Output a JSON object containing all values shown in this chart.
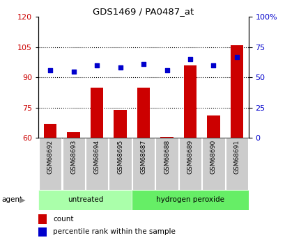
{
  "title": "GDS1469 / PA0487_at",
  "samples": [
    "GSM68692",
    "GSM68693",
    "GSM68694",
    "GSM68695",
    "GSM68687",
    "GSM68688",
    "GSM68689",
    "GSM68690",
    "GSM68691"
  ],
  "counts": [
    67,
    63,
    85,
    74,
    85,
    60.5,
    96,
    71,
    106
  ],
  "percentile_ranks": [
    56,
    55,
    60,
    58,
    61,
    56,
    65,
    60,
    67
  ],
  "groups": [
    "untreated",
    "untreated",
    "untreated",
    "untreated",
    "hydrogen peroxide",
    "hydrogen peroxide",
    "hydrogen peroxide",
    "hydrogen peroxide",
    "hydrogen peroxide"
  ],
  "bar_color": "#cc0000",
  "dot_color": "#0000cc",
  "ylim_left": [
    60,
    120
  ],
  "yticks_left": [
    60,
    75,
    90,
    105,
    120
  ],
  "ylim_right": [
    0,
    100
  ],
  "yticks_right": [
    0,
    25,
    50,
    75,
    100
  ],
  "ylabel_left_color": "#cc0000",
  "ylabel_right_color": "#0000cc",
  "grid_lines": [
    75,
    90,
    105
  ],
  "legend_count_color": "#cc0000",
  "legend_pct_color": "#0000cc",
  "untreated_color": "#aaffaa",
  "peroxide_color": "#66ee66",
  "sample_box_color": "#cccccc"
}
